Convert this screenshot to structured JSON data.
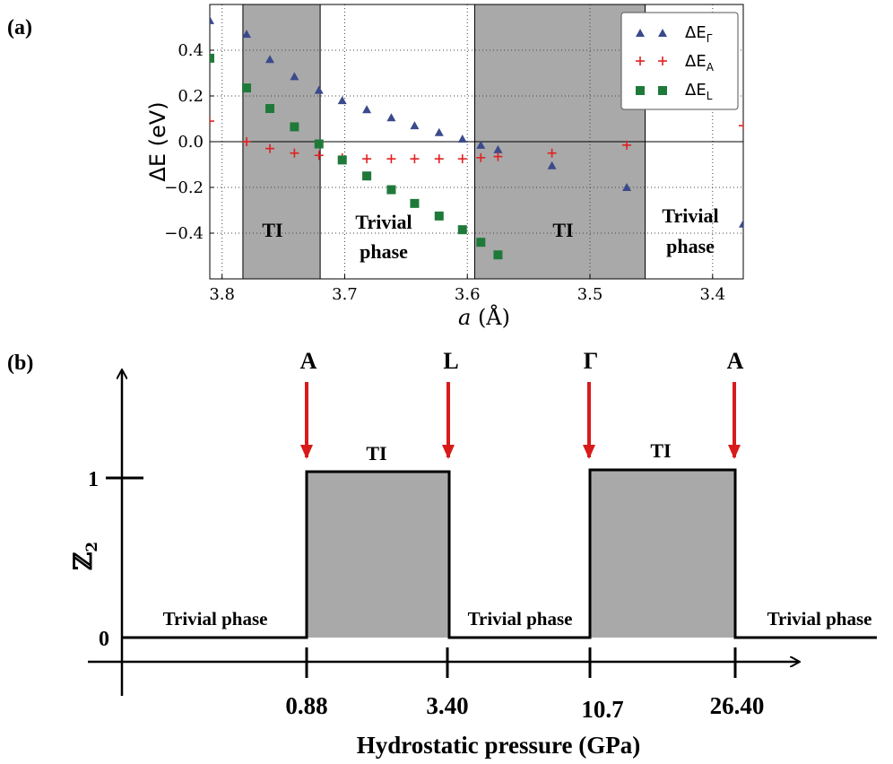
{
  "panel_a": {
    "label": "(a)",
    "region_labels": {
      "ti_1": "TI",
      "trivial_1_line1": "Trivial",
      "trivial_1_line2": "phase",
      "ti_2": "TI",
      "trivial_2_line1": "Trivial",
      "trivial_2_line2": "phase"
    },
    "legend_labels": [
      "ΔE",
      "ΔE",
      "ΔE"
    ],
    "legend_subscripts": [
      "Γ",
      "A",
      "L"
    ]
  },
  "panel_b": {
    "label": "(b)",
    "y_axis_label": "ℤ",
    "y_axis_label_sub": "2",
    "y_tick_labels": [
      "0",
      "1"
    ],
    "x_axis_label": "Hydrostatic pressure (GPa)",
    "x_tick_labels": [
      "0.88",
      "3.40",
      "10.7",
      "26.40"
    ],
    "arrow_labels": [
      "A",
      "L",
      "Γ",
      "A"
    ],
    "box_labels": [
      "TI",
      "TI"
    ],
    "phase_labels": [
      "Trivial phase",
      "Trivial phase",
      "Trivial phase"
    ]
  },
  "colors": {
    "gamma": "#3b4a8c",
    "A": "#e02020",
    "L": "#1f7a3a",
    "shade": "#a9a9a9",
    "arrow": "#d91a1a"
  },
  "chart_data": [
    {
      "type": "scatter",
      "title": "",
      "xlabel": "a (Å)",
      "ylabel": "ΔE (eV)",
      "xlim": [
        3.81,
        3.375
      ],
      "ylim": [
        -0.6,
        0.6
      ],
      "x_ticks": [
        3.8,
        3.7,
        3.6,
        3.5,
        3.4
      ],
      "x_tick_labels": [
        "3.8",
        "3.7",
        "3.6",
        "3.5",
        "3.4"
      ],
      "y_ticks": [
        -0.4,
        -0.2,
        0.0,
        0.2,
        0.4
      ],
      "y_tick_labels": [
        "−0.4",
        "−0.2",
        "0.0",
        "0.2",
        "0.4"
      ],
      "grid": true,
      "legend_position": "top-right",
      "shaded_regions": [
        [
          3.783,
          3.72
        ],
        [
          3.594,
          3.455
        ]
      ],
      "series": [
        {
          "name": "ΔE_Γ",
          "marker": "triangle",
          "x": [
            3.81,
            3.78,
            3.761,
            3.741,
            3.721,
            3.702,
            3.682,
            3.662,
            3.643,
            3.623,
            3.604,
            3.589,
            3.575,
            3.531,
            3.47,
            3.375
          ],
          "y": [
            0.53,
            0.47,
            0.36,
            0.285,
            0.225,
            0.18,
            0.14,
            0.105,
            0.07,
            0.04,
            0.012,
            -0.015,
            -0.035,
            -0.105,
            -0.2,
            -0.36
          ]
        },
        {
          "name": "ΔE_A",
          "marker": "plus",
          "x": [
            3.81,
            3.78,
            3.761,
            3.741,
            3.721,
            3.702,
            3.682,
            3.662,
            3.643,
            3.623,
            3.604,
            3.589,
            3.575,
            3.531,
            3.47,
            3.375
          ],
          "y": [
            0.09,
            0.0,
            -0.03,
            -0.05,
            -0.06,
            -0.07,
            -0.075,
            -0.075,
            -0.075,
            -0.075,
            -0.075,
            -0.07,
            -0.065,
            -0.05,
            -0.015,
            0.07
          ]
        },
        {
          "name": "ΔE_L",
          "marker": "square",
          "x": [
            3.81,
            3.78,
            3.761,
            3.741,
            3.721,
            3.702,
            3.682,
            3.662,
            3.643,
            3.623,
            3.604,
            3.589,
            3.575
          ],
          "y": [
            0.365,
            0.235,
            0.145,
            0.065,
            -0.01,
            -0.08,
            -0.15,
            -0.21,
            -0.27,
            -0.325,
            -0.385,
            -0.44,
            -0.495
          ]
        }
      ]
    },
    {
      "type": "line",
      "title": "",
      "xlabel": "Hydrostatic pressure (GPa)",
      "ylabel": "ℤ2",
      "y_ticks": [
        0,
        1
      ],
      "x_ticks": [
        "0.88",
        "3.40",
        "10.7",
        "26.40"
      ],
      "segments": [
        {
          "from": "start",
          "to": "0.88",
          "z2": 0,
          "label": "Trivial phase"
        },
        {
          "from": "0.88",
          "to": "3.40",
          "z2": 1,
          "label": "TI"
        },
        {
          "from": "3.40",
          "to": "10.7",
          "z2": 0,
          "label": "Trivial phase"
        },
        {
          "from": "10.7",
          "to": "26.40",
          "z2": 1,
          "label": "TI"
        },
        {
          "from": "26.40",
          "to": "end",
          "z2": 0,
          "label": "Trivial phase"
        }
      ],
      "transitions": [
        {
          "pressure": "0.88",
          "point": "A"
        },
        {
          "pressure": "3.40",
          "point": "L"
        },
        {
          "pressure": "10.7",
          "point": "Γ"
        },
        {
          "pressure": "26.40",
          "point": "A"
        }
      ]
    }
  ]
}
